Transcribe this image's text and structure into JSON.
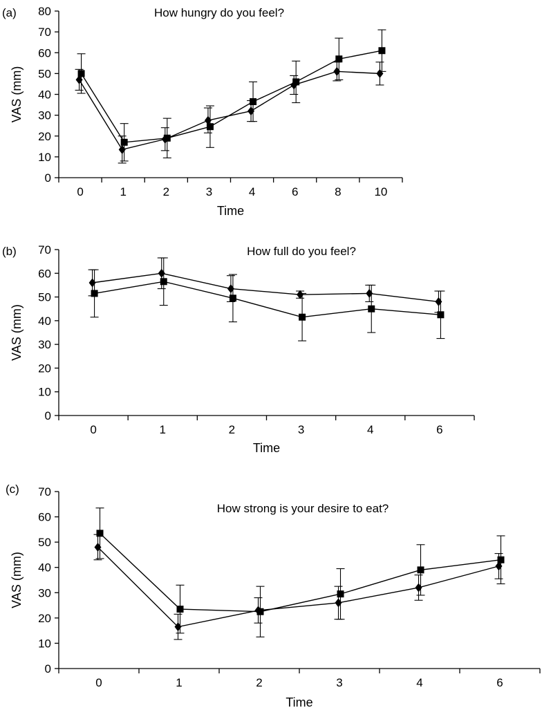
{
  "chart_data": [
    {
      "type": "line",
      "panel_label": "(a)",
      "title": "How hungry do you feel?",
      "xlabel": "Time",
      "ylabel": "VAS (mm)",
      "categories": [
        "0",
        "1",
        "2",
        "3",
        "4",
        "6",
        "8",
        "10"
      ],
      "ylim": [
        0,
        80
      ],
      "yticks": [
        0,
        10,
        20,
        30,
        40,
        50,
        60,
        70,
        80
      ],
      "grid": false,
      "series": [
        {
          "marker": "square",
          "values": [
            50,
            17,
            19,
            24.5,
            36.5,
            46,
            57,
            61
          ],
          "errors": [
            9.5,
            9,
            9.5,
            10,
            9.5,
            10,
            10,
            10
          ]
        },
        {
          "marker": "diamond",
          "values": [
            47,
            13.5,
            18.5,
            27.5,
            32,
            44.5,
            51,
            50
          ],
          "errors": [
            5,
            6.5,
            5.5,
            6,
            5,
            4.5,
            4.5,
            5.5
          ]
        }
      ]
    },
    {
      "type": "line",
      "panel_label": "(b)",
      "title": "How full do you feel?",
      "xlabel": "Time",
      "ylabel": "VAS (mm)",
      "categories": [
        "0",
        "1",
        "2",
        "3",
        "4",
        "6"
      ],
      "ylim": [
        0,
        70
      ],
      "yticks": [
        0,
        10,
        20,
        30,
        40,
        50,
        60,
        70
      ],
      "grid": false,
      "series": [
        {
          "marker": "square",
          "values": [
            51.5,
            56.5,
            49.5,
            41.5,
            45,
            42.5
          ],
          "errors": [
            10,
            10,
            10,
            10,
            10,
            10
          ]
        },
        {
          "marker": "diamond",
          "values": [
            56,
            60,
            53.5,
            51,
            51.5,
            48
          ],
          "errors": [
            5.5,
            6.5,
            5.5,
            1.5,
            3.5,
            4.5
          ]
        }
      ]
    },
    {
      "type": "line",
      "panel_label": "(c)",
      "title": "How strong is your desire to eat?",
      "xlabel": "Time",
      "ylabel": "VAS (mm)",
      "categories": [
        "0",
        "1",
        "2",
        "3",
        "4",
        "6"
      ],
      "ylim": [
        0,
        70
      ],
      "yticks": [
        0,
        10,
        20,
        30,
        40,
        50,
        60,
        70
      ],
      "grid": false,
      "series": [
        {
          "marker": "square",
          "values": [
            53.5,
            23.5,
            22.5,
            29.5,
            39,
            43
          ],
          "errors": [
            10,
            9.5,
            10,
            10,
            10,
            9.5
          ]
        },
        {
          "marker": "diamond",
          "values": [
            48,
            16.5,
            23,
            26,
            32,
            40.5
          ],
          "errors": [
            5,
            5,
            5,
            6.5,
            5,
            5
          ]
        }
      ]
    }
  ]
}
